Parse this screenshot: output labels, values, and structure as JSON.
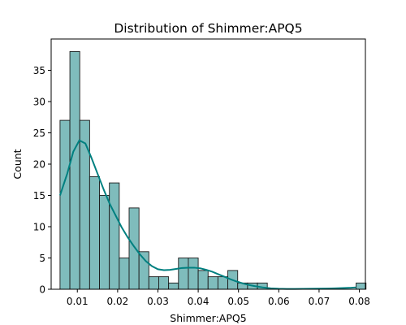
{
  "chart_data": {
    "type": "bar",
    "subtype": "histogram-with-kde",
    "title": "Distribution of Shimmer:APQ5",
    "xlabel": "Shimmer:APQ5",
    "ylabel": "Count",
    "xlim": [
      0.0035,
      0.0815
    ],
    "ylim": [
      0,
      40
    ],
    "xticks": [
      0.01,
      0.02,
      0.03,
      0.04,
      0.05,
      0.06,
      0.07,
      0.08
    ],
    "xtick_labels": [
      "0.01",
      "0.02",
      "0.03",
      "0.04",
      "0.05",
      "0.06",
      "0.07",
      "0.08"
    ],
    "yticks": [
      0,
      5,
      10,
      15,
      20,
      25,
      30,
      35
    ],
    "ytick_labels": [
      "0",
      "5",
      "10",
      "15",
      "20",
      "25",
      "30",
      "35"
    ],
    "bin_start": 0.0057,
    "bin_width": 0.00245,
    "counts": [
      27,
      38,
      27,
      18,
      15,
      17,
      5,
      13,
      6,
      2,
      2,
      1,
      5,
      5,
      3,
      2,
      2,
      3,
      1,
      1,
      1,
      0,
      0,
      0,
      0,
      0,
      0,
      0,
      0,
      0,
      1
    ],
    "kde": {
      "x": [
        0.0057,
        0.0075,
        0.009,
        0.0105,
        0.012,
        0.0135,
        0.015,
        0.0165,
        0.018,
        0.0195,
        0.021,
        0.0225,
        0.024,
        0.0255,
        0.027,
        0.0285,
        0.03,
        0.0315,
        0.033,
        0.0345,
        0.036,
        0.0375,
        0.039,
        0.0405,
        0.042,
        0.0435,
        0.045,
        0.0465,
        0.048,
        0.0495,
        0.051,
        0.0525,
        0.054,
        0.056,
        0.058,
        0.06,
        0.062,
        0.064,
        0.066,
        0.068,
        0.07,
        0.072,
        0.074,
        0.076,
        0.078,
        0.0792
      ],
      "y": [
        15,
        18.5,
        22,
        23.8,
        23.3,
        21,
        18.5,
        16,
        13.7,
        11.8,
        9.9,
        8.3,
        6.9,
        5.6,
        4.5,
        3.7,
        3.2,
        3.05,
        3.1,
        3.25,
        3.4,
        3.45,
        3.45,
        3.35,
        3.1,
        2.8,
        2.4,
        2.0,
        1.6,
        1.25,
        0.95,
        0.7,
        0.5,
        0.3,
        0.15,
        0.08,
        0.05,
        0.05,
        0.06,
        0.08,
        0.1,
        0.12,
        0.15,
        0.2,
        0.25,
        0.3
      ]
    },
    "colors": {
      "bar_fill": "#7fbcbc",
      "bar_edge": "#1a1a1a",
      "kde_line": "#008080"
    },
    "grid": false,
    "legend": "none"
  }
}
